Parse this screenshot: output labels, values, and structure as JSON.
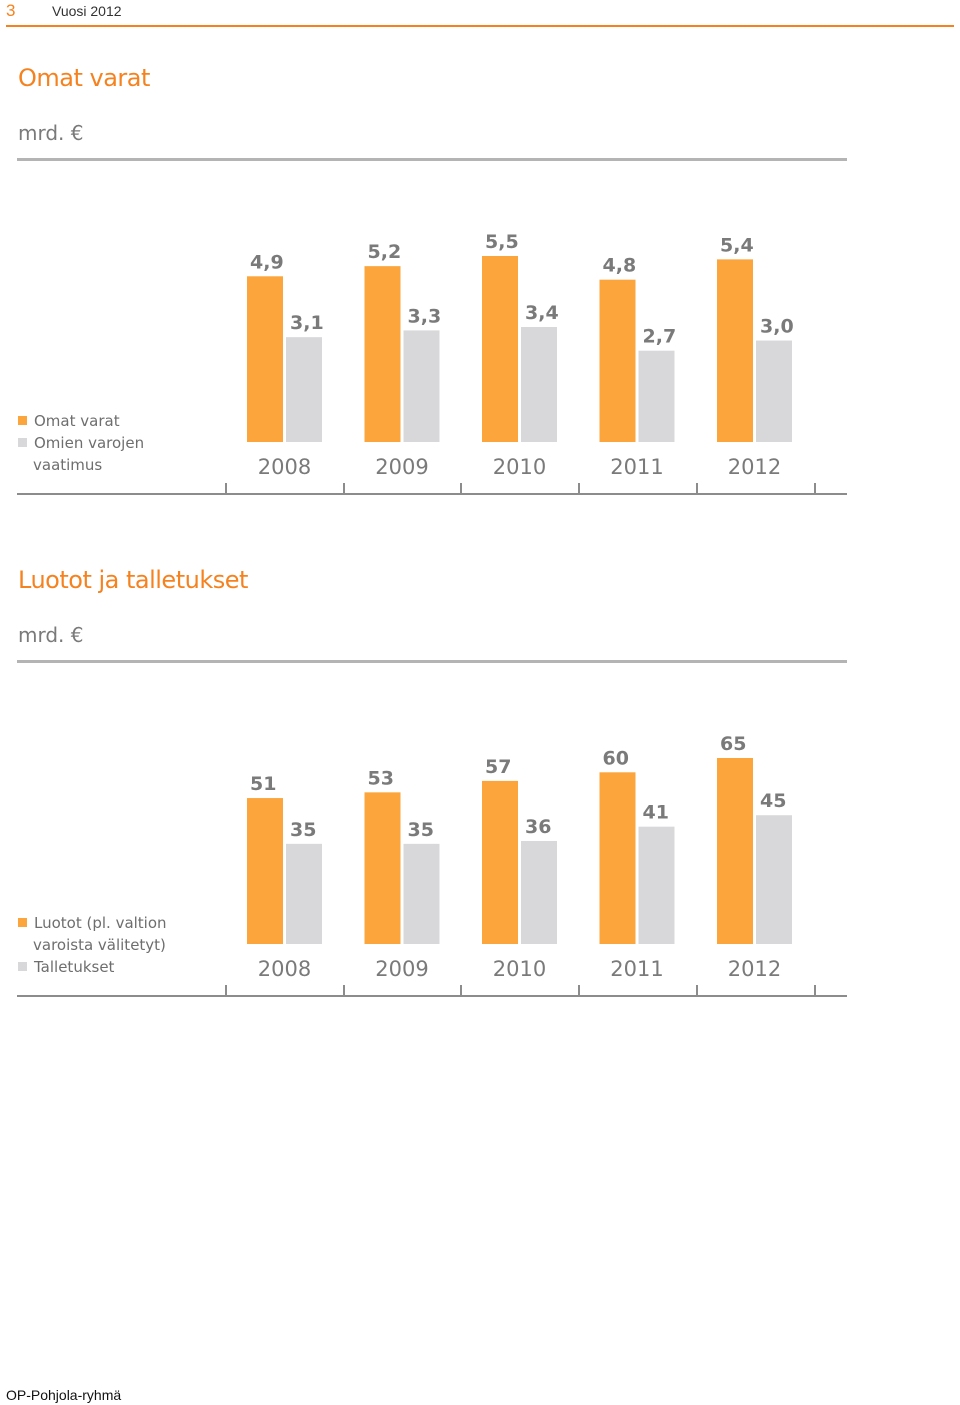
{
  "header": {
    "page_number": "3",
    "title": "Vuosi 2012"
  },
  "footer": {
    "text": "OP-Pohjola-ryhmä"
  },
  "colors": {
    "accent": "#f5821f",
    "primary_series": "#fba53c",
    "secondary_series": "#d8d8da",
    "rule": "#b4b4b4",
    "text_muted": "#7a7a7a"
  },
  "chart_data": [
    {
      "type": "bar",
      "title": "Omat varat",
      "ylabel": "mrd. €",
      "categories": [
        "2008",
        "2009",
        "2010",
        "2011",
        "2012"
      ],
      "ylim": [
        0,
        5.5
      ],
      "grid": false,
      "legend_position": "bottom-left",
      "series": [
        {
          "name": "Omat varat",
          "values": [
            4.9,
            5.2,
            5.5,
            4.8,
            5.4
          ],
          "labels": [
            "4,9",
            "5,2",
            "5,5",
            "4,8",
            "5,4"
          ],
          "color": "#fba53c"
        },
        {
          "name": "Omien varojen vaatimus",
          "name_lines": [
            "Omien varojen",
            "vaatimus"
          ],
          "values": [
            3.1,
            3.3,
            3.4,
            2.7,
            3.0
          ],
          "labels": [
            "3,1",
            "3,3",
            "3,4",
            "2,7",
            "3,0"
          ],
          "color": "#d8d8da"
        }
      ]
    },
    {
      "type": "bar",
      "title": "Luotot ja talletukset",
      "ylabel": "mrd. €",
      "categories": [
        "2008",
        "2009",
        "2010",
        "2011",
        "2012"
      ],
      "ylim": [
        0,
        65
      ],
      "grid": false,
      "legend_position": "bottom-left",
      "series": [
        {
          "name": "Luotot (pl. valtion varoista välitetyt)",
          "name_lines": [
            "Luotot (pl. valtion",
            "varoista välitetyt)"
          ],
          "values": [
            51,
            53,
            57,
            60,
            65
          ],
          "labels": [
            "51",
            "53",
            "57",
            "60",
            "65"
          ],
          "color": "#fba53c"
        },
        {
          "name": "Talletukset",
          "values": [
            35,
            35,
            36,
            41,
            45
          ],
          "labels": [
            "35",
            "35",
            "36",
            "41",
            "45"
          ],
          "color": "#d8d8da"
        }
      ]
    }
  ]
}
